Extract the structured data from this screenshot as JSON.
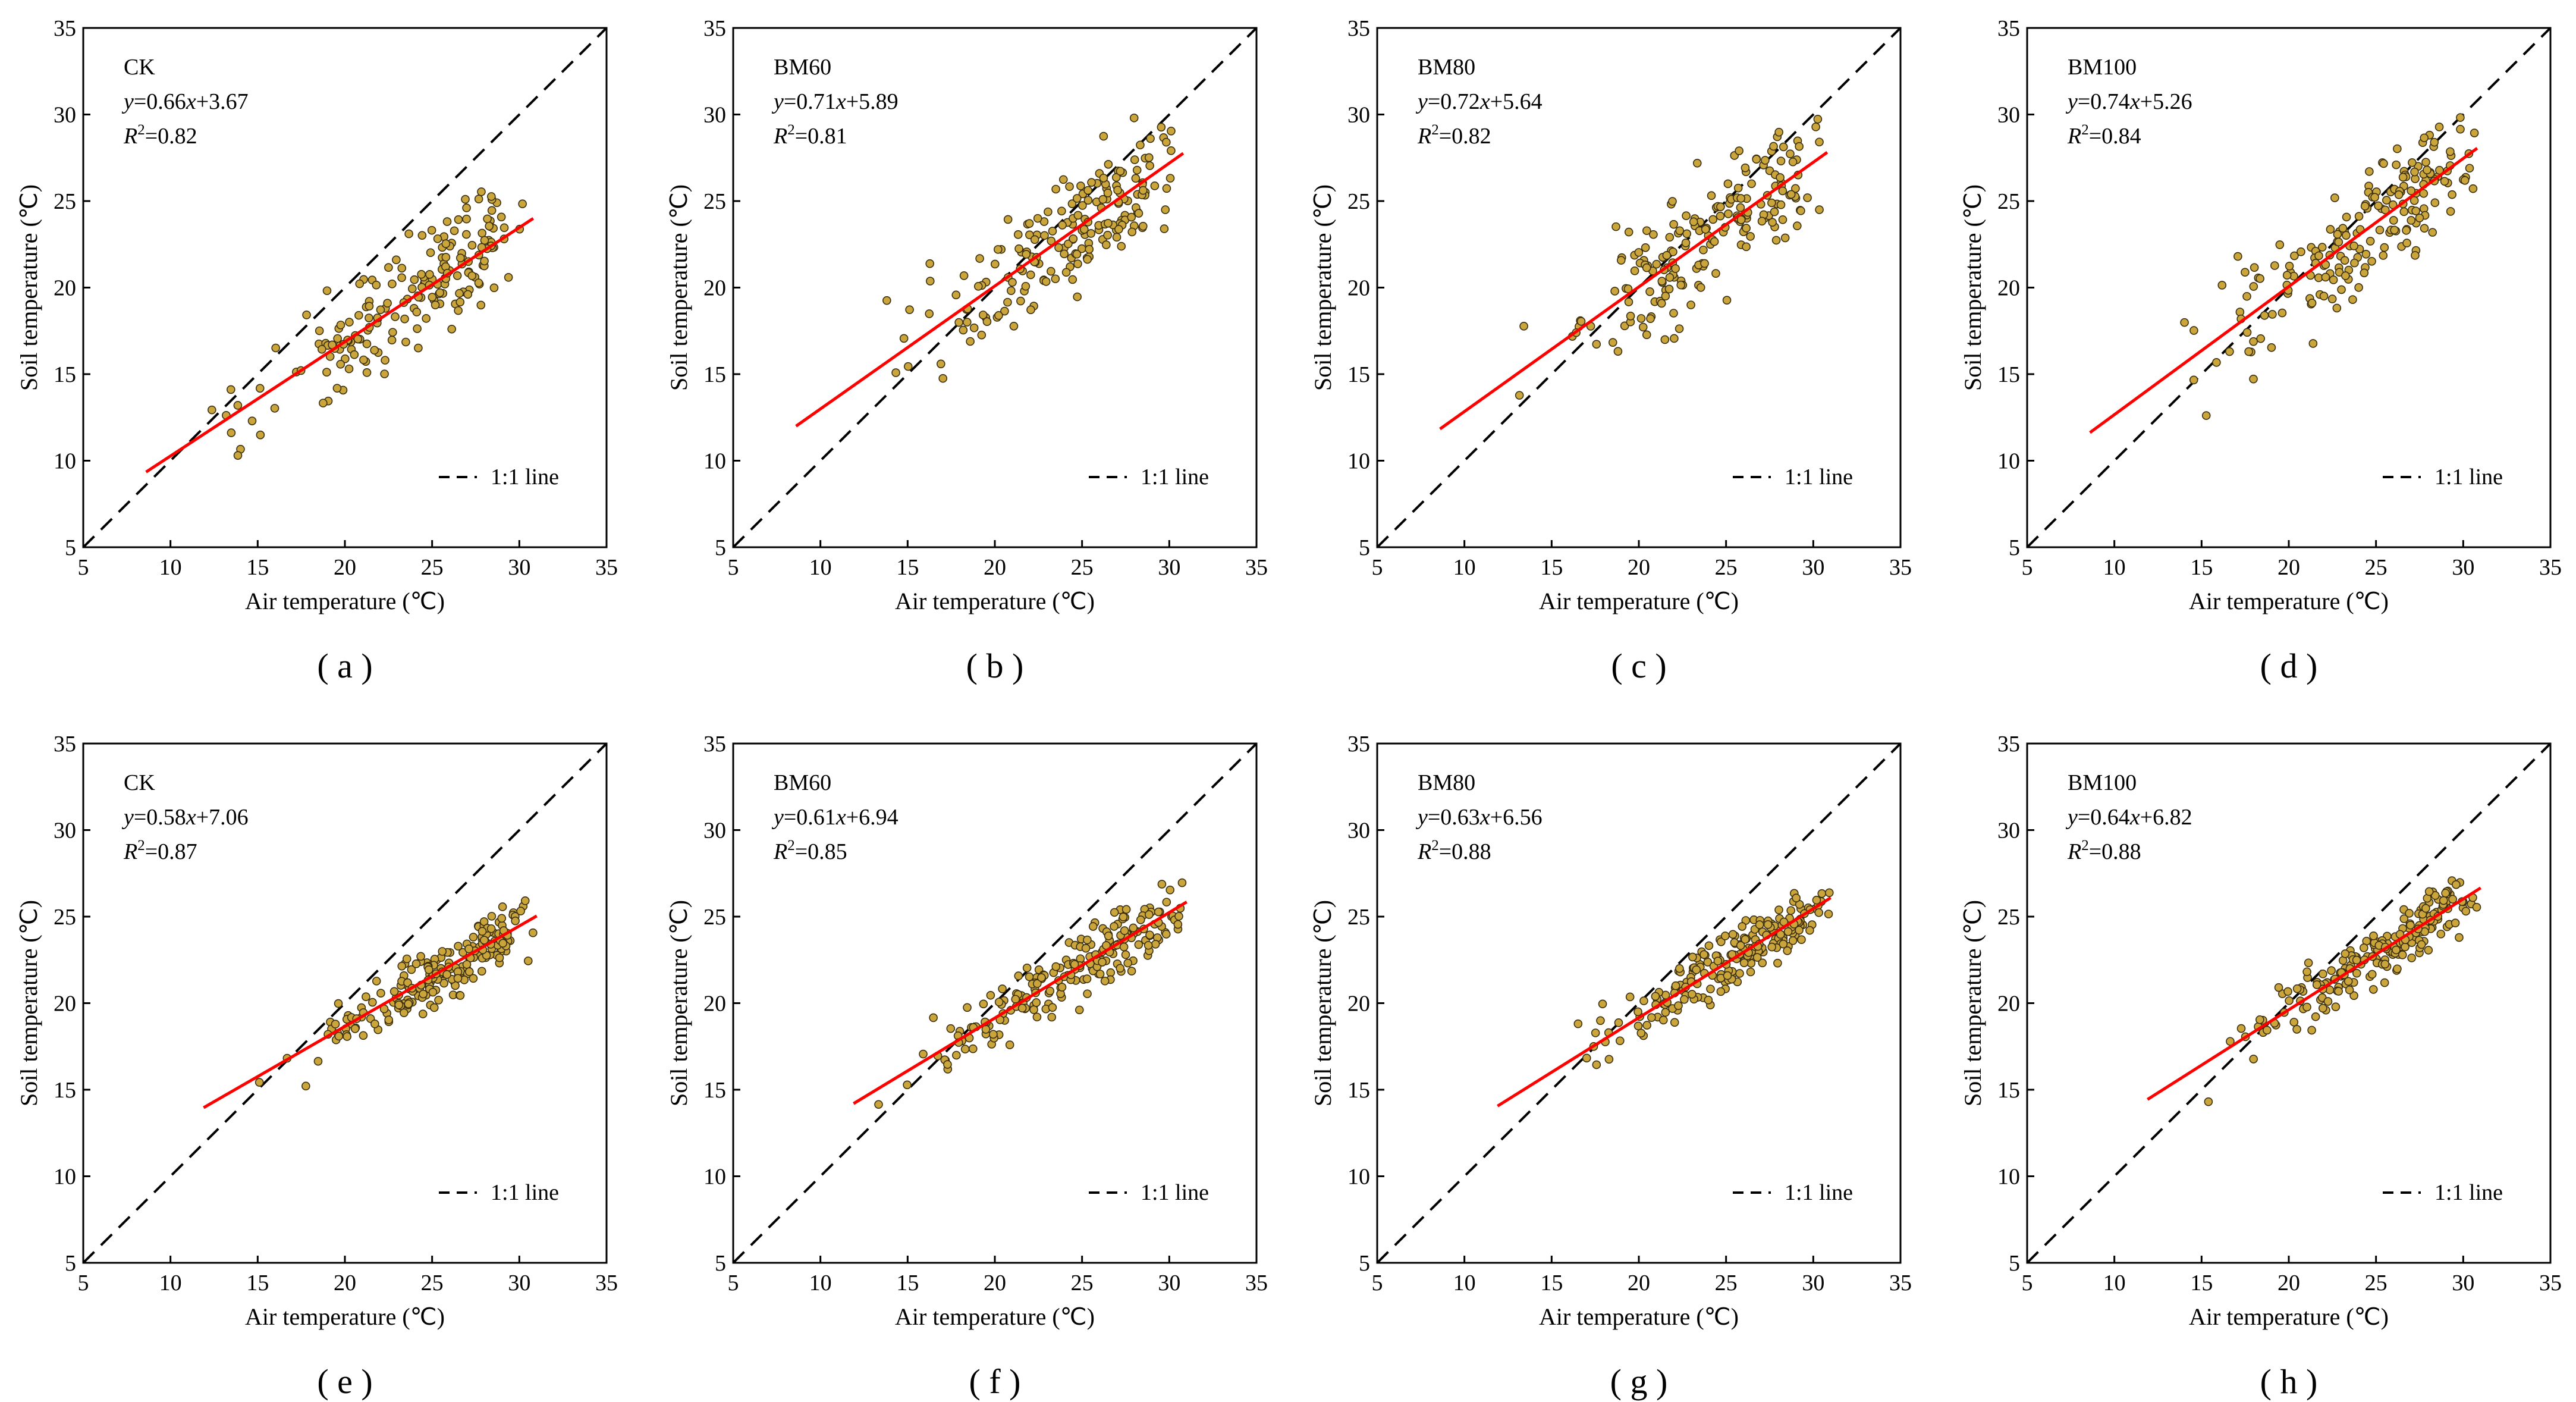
{
  "figure": {
    "panels": [
      "a",
      "b",
      "c",
      "d",
      "e",
      "f",
      "g",
      "h"
    ]
  },
  "chart_data": [
    {
      "id": "a",
      "type": "scatter",
      "caption": "( a )",
      "treatment": "CK",
      "equation": {
        "prefix": "y",
        "eq": "=0.66",
        "var": "x",
        "rest": "+3.67"
      },
      "r2": {
        "symbol": "R",
        "sup": "2",
        "value": "=0.82"
      },
      "slope": 0.66,
      "intercept": 3.67,
      "fit_range": [
        8.6,
        30.8
      ],
      "xlabel": "Air temperature (℃)",
      "ylabel": "Soil temperature (℃)",
      "xlim": [
        5,
        35
      ],
      "ylim": [
        5,
        35
      ],
      "xticks": [
        5,
        10,
        15,
        20,
        25,
        30,
        35
      ],
      "yticks": [
        5,
        10,
        15,
        20,
        25,
        30,
        35
      ],
      "legend": "1:1 line",
      "point_color": "#C9A53C",
      "fit_color": "#FF0000",
      "cloud": {
        "xmin": 8.6,
        "xmax": 30.8,
        "sd": 2.3,
        "n": 190,
        "seed": 11
      }
    },
    {
      "id": "b",
      "type": "scatter",
      "caption": "( b )",
      "treatment": "BM60",
      "equation": {
        "prefix": "y",
        "eq": "=0.71",
        "var": "x",
        "rest": "+5.89"
      },
      "r2": {
        "symbol": "R",
        "sup": "2",
        "value": "=0.81"
      },
      "slope": 0.71,
      "intercept": 5.89,
      "fit_range": [
        8.6,
        30.8
      ],
      "xlabel": "Air temperature (℃)",
      "ylabel": "Soil temperature (℃)",
      "xlim": [
        5,
        35
      ],
      "ylim": [
        5,
        35
      ],
      "xticks": [
        5,
        10,
        15,
        20,
        25,
        30,
        35
      ],
      "yticks": [
        5,
        10,
        15,
        20,
        25,
        30,
        35
      ],
      "legend": "1:1 line",
      "point_color": "#C9A53C",
      "fit_color": "#FF0000",
      "cloud": {
        "xmin": 8.6,
        "xmax": 30.8,
        "sd": 2.5,
        "n": 190,
        "seed": 23
      }
    },
    {
      "id": "c",
      "type": "scatter",
      "caption": "( c )",
      "treatment": "BM80",
      "equation": {
        "prefix": "y",
        "eq": "=0.72",
        "var": "x",
        "rest": "+5.64"
      },
      "r2": {
        "symbol": "R",
        "sup": "2",
        "value": "=0.82"
      },
      "slope": 0.72,
      "intercept": 5.64,
      "fit_range": [
        8.6,
        30.8
      ],
      "xlabel": "Air temperature (℃)",
      "ylabel": "Soil temperature (℃)",
      "xlim": [
        5,
        35
      ],
      "ylim": [
        5,
        35
      ],
      "xticks": [
        5,
        10,
        15,
        20,
        25,
        30,
        35
      ],
      "yticks": [
        5,
        10,
        15,
        20,
        25,
        30,
        35
      ],
      "legend": "1:1 line",
      "point_color": "#C9A53C",
      "fit_color": "#FF0000",
      "cloud": {
        "xmin": 8.6,
        "xmax": 30.8,
        "sd": 2.5,
        "n": 190,
        "seed": 37
      }
    },
    {
      "id": "d",
      "type": "scatter",
      "caption": "( d )",
      "treatment": "BM100",
      "equation": {
        "prefix": "y",
        "eq": "=0.74",
        "var": "x",
        "rest": "+5.26"
      },
      "r2": {
        "symbol": "R",
        "sup": "2",
        "value": "=0.84"
      },
      "slope": 0.74,
      "intercept": 5.26,
      "fit_range": [
        8.6,
        30.8
      ],
      "xlabel": "Air temperature (℃)",
      "ylabel": "Soil temperature (℃)",
      "xlim": [
        5,
        35
      ],
      "ylim": [
        5,
        35
      ],
      "xticks": [
        5,
        10,
        15,
        20,
        25,
        30,
        35
      ],
      "yticks": [
        5,
        10,
        15,
        20,
        25,
        30,
        35
      ],
      "legend": "1:1 line",
      "point_color": "#C9A53C",
      "fit_color": "#FF0000",
      "cloud": {
        "xmin": 8.6,
        "xmax": 30.8,
        "sd": 2.4,
        "n": 190,
        "seed": 41
      }
    },
    {
      "id": "e",
      "type": "scatter",
      "caption": "( e )",
      "treatment": "CK",
      "equation": {
        "prefix": "y",
        "eq": "=0.58",
        "var": "x",
        "rest": "+7.06"
      },
      "r2": {
        "symbol": "R",
        "sup": "2",
        "value": "=0.87"
      },
      "slope": 0.58,
      "intercept": 7.06,
      "fit_range": [
        11.9,
        31.0
      ],
      "xlabel": "Air temperature (℃)",
      "ylabel": "Soil temperature (℃)",
      "xlim": [
        5,
        35
      ],
      "ylim": [
        5,
        35
      ],
      "xticks": [
        5,
        10,
        15,
        20,
        25,
        30,
        35
      ],
      "yticks": [
        5,
        10,
        15,
        20,
        25,
        30,
        35
      ],
      "legend": "1:1 line",
      "point_color": "#C9A53C",
      "fit_color": "#FF0000",
      "cloud": {
        "xmin": 12.0,
        "xmax": 31.0,
        "sd": 1.2,
        "n": 210,
        "seed": 53
      }
    },
    {
      "id": "f",
      "type": "scatter",
      "caption": "( f )",
      "treatment": "BM60",
      "equation": {
        "prefix": "y",
        "eq": "=0.61",
        "var": "x",
        "rest": "+6.94"
      },
      "r2": {
        "symbol": "R",
        "sup": "2",
        "value": "=0.85"
      },
      "slope": 0.61,
      "intercept": 6.94,
      "fit_range": [
        11.9,
        31.0
      ],
      "xlabel": "Air temperature (℃)",
      "ylabel": "Soil temperature (℃)",
      "xlim": [
        5,
        35
      ],
      "ylim": [
        5,
        35
      ],
      "xticks": [
        5,
        10,
        15,
        20,
        25,
        30,
        35
      ],
      "yticks": [
        5,
        10,
        15,
        20,
        25,
        30,
        35
      ],
      "legend": "1:1 line",
      "point_color": "#C9A53C",
      "fit_color": "#FF0000",
      "cloud": {
        "xmin": 12.0,
        "xmax": 31.0,
        "sd": 1.3,
        "n": 210,
        "seed": 67
      }
    },
    {
      "id": "g",
      "type": "scatter",
      "caption": "( g )",
      "treatment": "BM80",
      "equation": {
        "prefix": "y",
        "eq": "=0.63",
        "var": "x",
        "rest": "+6.56"
      },
      "r2": {
        "symbol": "R",
        "sup": "2",
        "value": "=0.88"
      },
      "slope": 0.63,
      "intercept": 6.56,
      "fit_range": [
        11.9,
        31.0
      ],
      "xlabel": "Air temperature (℃)",
      "ylabel": "Soil temperature (℃)",
      "xlim": [
        5,
        35
      ],
      "ylim": [
        5,
        35
      ],
      "xticks": [
        5,
        10,
        15,
        20,
        25,
        30,
        35
      ],
      "yticks": [
        5,
        10,
        15,
        20,
        25,
        30,
        35
      ],
      "legend": "1:1 line",
      "point_color": "#C9A53C",
      "fit_color": "#FF0000",
      "cloud": {
        "xmin": 12.0,
        "xmax": 31.0,
        "sd": 1.2,
        "n": 210,
        "seed": 79
      }
    },
    {
      "id": "h",
      "type": "scatter",
      "caption": "( h )",
      "treatment": "BM100",
      "equation": {
        "prefix": "y",
        "eq": "=0.64",
        "var": "x",
        "rest": "+6.82"
      },
      "r2": {
        "symbol": "R",
        "sup": "2",
        "value": "=0.88"
      },
      "slope": 0.64,
      "intercept": 6.82,
      "fit_range": [
        11.9,
        31.0
      ],
      "xlabel": "Air temperature (℃)",
      "ylabel": "Soil temperature (℃)",
      "xlim": [
        5,
        35
      ],
      "ylim": [
        5,
        35
      ],
      "xticks": [
        5,
        10,
        15,
        20,
        25,
        30,
        35
      ],
      "yticks": [
        5,
        10,
        15,
        20,
        25,
        30,
        35
      ],
      "legend": "1:1 line",
      "point_color": "#C9A53C",
      "fit_color": "#FF0000",
      "cloud": {
        "xmin": 12.0,
        "xmax": 31.0,
        "sd": 1.2,
        "n": 210,
        "seed": 83
      }
    }
  ]
}
